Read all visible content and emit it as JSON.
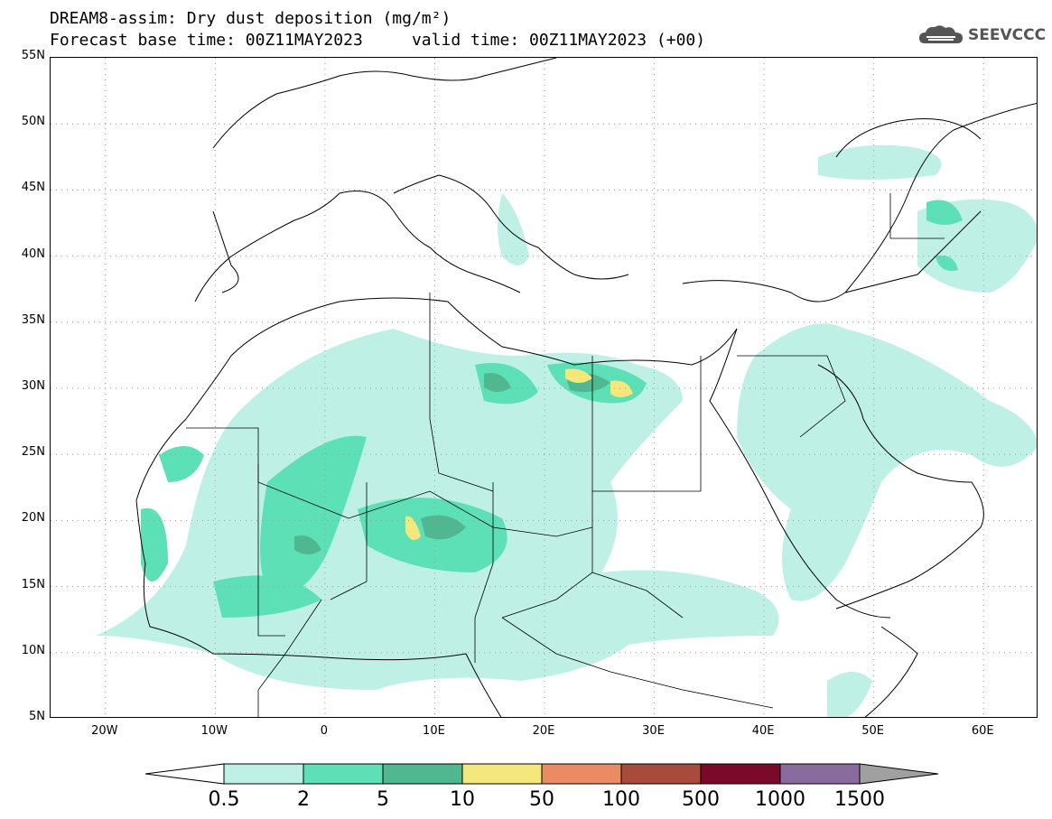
{
  "title": {
    "line1": "DREAM8-assim: Dry dust deposition (mg/m²)",
    "line2": "Forecast base time: 00Z11MAY2023     valid time: 00Z11MAY2023 (+00)"
  },
  "logo": {
    "text": "SEEVCCC",
    "icon": "cloud-icon"
  },
  "map": {
    "lat_labels": [
      "55N",
      "50N",
      "45N",
      "40N",
      "35N",
      "30N",
      "25N",
      "20N",
      "15N",
      "10N",
      "5N"
    ],
    "lon_labels": [
      "20W",
      "10W",
      "0",
      "10E",
      "20E",
      "30E",
      "40E",
      "50E",
      "60E"
    ],
    "extent": {
      "lon_min": -25,
      "lon_max": 65,
      "lat_min": 5,
      "lat_max": 55
    },
    "gridlines": "dotted"
  },
  "legend": {
    "labels": [
      "0.5",
      "2",
      "5",
      "10",
      "50",
      "100",
      "500",
      "1000",
      "1500"
    ],
    "colors": [
      "#bff0e6",
      "#5ee0b6",
      "#4fb890",
      "#f4e77c",
      "#eb8b64",
      "#a84a3c",
      "#7b0a2a",
      "#8a6b9e"
    ],
    "end_colors": {
      "low": "#ffffff",
      "high": "#a0a0a0"
    }
  }
}
